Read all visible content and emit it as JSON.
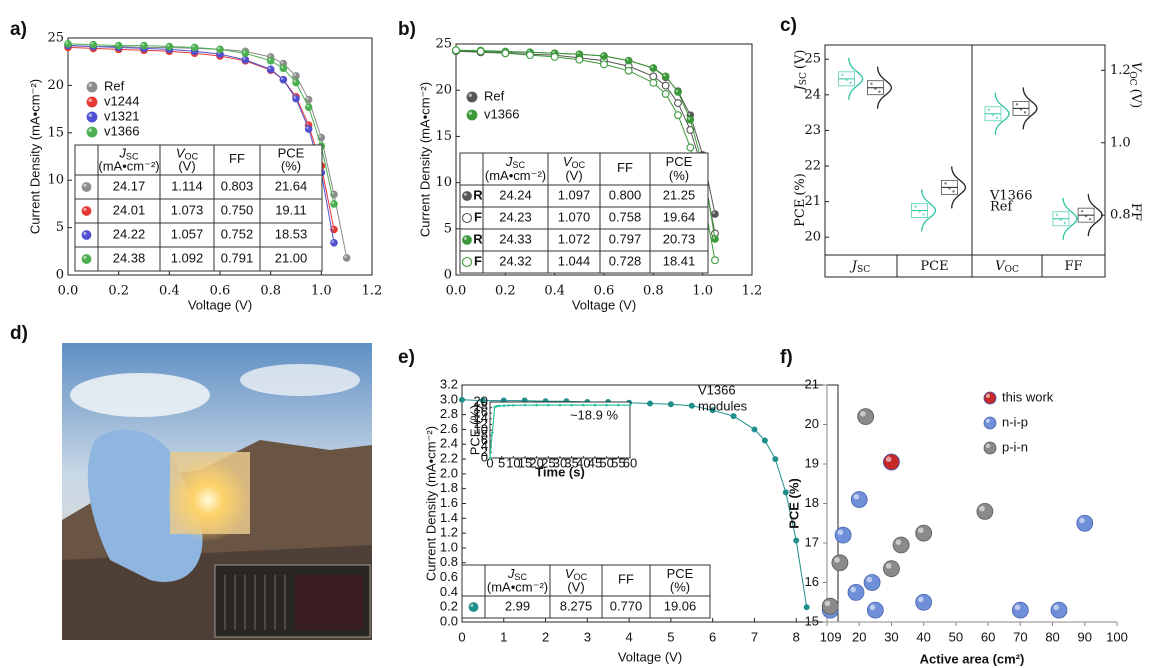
{
  "photo": {
    "label": "d)"
  },
  "chart_data": [
    {
      "type": "line",
      "label": "a)",
      "xlabel": "Voltage (V)",
      "ylabel": "Current Density (mA•cm⁻²)",
      "x": [
        0,
        0.1,
        0.2,
        0.3,
        0.4,
        0.5,
        0.6,
        0.7,
        0.8,
        0.85,
        0.9,
        0.95,
        1.0,
        1.05,
        1.1
      ],
      "series": [
        {
          "name": "Ref",
          "color": "#8c8c8c",
          "text_color": "#000000",
          "values": [
            24.17,
            24.1,
            24.1,
            24.0,
            24.0,
            23.9,
            23.8,
            23.6,
            23.0,
            22.3,
            21.0,
            18.5,
            14.5,
            8.5,
            1.8
          ]
        },
        {
          "name": "v1244",
          "color": "#e53935",
          "text_color": "#d32f2f",
          "values": [
            24.01,
            23.9,
            23.8,
            23.7,
            23.6,
            23.4,
            23.1,
            22.6,
            21.6,
            20.6,
            18.8,
            15.8,
            11.5,
            4.8,
            null
          ]
        },
        {
          "name": "v1321",
          "color": "#5050d0",
          "text_color": "#2e2ea8",
          "values": [
            24.22,
            24.1,
            24.0,
            23.9,
            23.8,
            23.6,
            23.3,
            22.7,
            21.7,
            20.6,
            18.6,
            15.4,
            10.8,
            3.4,
            null
          ]
        },
        {
          "name": "v1366",
          "color": "#4caf50",
          "text_color": "#5a9a2a",
          "values": [
            24.38,
            24.3,
            24.2,
            24.2,
            24.1,
            24.0,
            23.8,
            23.4,
            22.6,
            21.8,
            20.3,
            17.7,
            13.6,
            7.5,
            null
          ]
        }
      ],
      "xlim": [
        0,
        1.2
      ],
      "xticks": [
        {
          "value": 0,
          "label": "0.0"
        },
        0.2,
        0.4,
        0.6,
        0.8,
        {
          "value": 1,
          "label": "1.0"
        },
        1.2
      ],
      "ylim": [
        0,
        25
      ],
      "yticks": [
        0,
        5,
        10,
        15,
        20,
        25
      ],
      "table": {
        "columns": [
          {
            "name": "J",
            "sub": "SC",
            "unit": "(mA•cm⁻²)"
          },
          {
            "name": "V",
            "sub": "OC",
            "unit": "(V)"
          },
          {
            "name": "FF"
          },
          {
            "name": "PCE",
            "unit": "(%)"
          }
        ],
        "rows": [
          [
            "24.17",
            "1.114",
            "0.803",
            "21.64"
          ],
          [
            "24.01",
            "1.073",
            "0.750",
            "19.11"
          ],
          [
            "24.22",
            "1.057",
            "0.752",
            "18.53"
          ],
          [
            "24.38",
            "1.092",
            "0.791",
            "21.00"
          ]
        ]
      }
    },
    {
      "type": "line",
      "label": "b)",
      "xlabel": "Voltage (V)",
      "ylabel": "Current Density (mA•cm⁻²)",
      "x": [
        0,
        0.1,
        0.2,
        0.3,
        0.4,
        0.5,
        0.6,
        0.7,
        0.8,
        0.85,
        0.9,
        0.95,
        1.0,
        1.05,
        1.1
      ],
      "series": [
        {
          "name": "Ref",
          "scan": "R",
          "marker": "filled",
          "color": "#555555",
          "text_color": "#000000",
          "values": [
            24.24,
            24.2,
            24.1,
            24.1,
            24.0,
            23.9,
            23.7,
            23.2,
            22.4,
            21.4,
            19.9,
            17.3,
            13.0,
            6.6,
            null
          ]
        },
        {
          "name": "Ref",
          "scan": "F",
          "marker": "open",
          "color": "#555555",
          "text_color": "#000000",
          "values": [
            24.23,
            24.1,
            24.0,
            23.9,
            23.8,
            23.5,
            23.2,
            22.6,
            21.5,
            20.5,
            18.6,
            15.7,
            11.4,
            4.5,
            null
          ]
        },
        {
          "name": "v1366",
          "scan": "R",
          "marker": "filled",
          "color": "#3a9a3a",
          "text_color": "#5aa02c",
          "values": [
            24.33,
            24.3,
            24.2,
            24.1,
            24.0,
            23.9,
            23.7,
            23.2,
            22.4,
            21.5,
            19.8,
            16.8,
            11.9,
            3.9,
            null
          ]
        },
        {
          "name": "v1366",
          "scan": "F",
          "marker": "open",
          "color": "#3a9a3a",
          "text_color": "#5aa02c",
          "values": [
            24.32,
            24.2,
            24.0,
            23.8,
            23.6,
            23.3,
            22.8,
            22.1,
            20.8,
            19.6,
            17.3,
            13.8,
            8.8,
            1.6,
            null
          ]
        }
      ],
      "xlim": [
        0,
        1.2
      ],
      "xticks": [
        {
          "value": 0,
          "label": "0.0"
        },
        0.2,
        0.4,
        0.6,
        0.8,
        {
          "value": 1,
          "label": "1.0"
        },
        1.2
      ],
      "ylim": [
        0,
        25
      ],
      "yticks": [
        0,
        5,
        10,
        15,
        20,
        25
      ],
      "table": {
        "columns": [
          {
            "name": "J",
            "sub": "SC",
            "unit": "(mA•cm⁻²)"
          },
          {
            "name": "V",
            "sub": "OC",
            "unit": "(V)"
          },
          {
            "name": "FF"
          },
          {
            "name": "PCE",
            "unit": "(%)"
          }
        ],
        "rows": [
          [
            "24.24",
            "1.097",
            "0.800",
            "21.25"
          ],
          [
            "24.23",
            "1.070",
            "0.758",
            "19.64"
          ],
          [
            "24.33",
            "1.072",
            "0.797",
            "20.73"
          ],
          [
            "24.32",
            "1.044",
            "0.728",
            "18.41"
          ]
        ]
      }
    },
    {
      "type": "box",
      "label": "c)",
      "categories": [
        {
          "name": "J",
          "sub": "SC"
        },
        {
          "name": "PCE"
        },
        {
          "name": "V",
          "sub": "OC"
        },
        {
          "name": "FF"
        }
      ],
      "axes": [
        "y",
        "y",
        "y2",
        "y2"
      ],
      "series": [
        {
          "name": "V1366",
          "color": "#2ec4a0",
          "values": [
            24.45,
            20.75,
            1.08,
            0.79
          ]
        },
        {
          "name": "Ref",
          "color": "#222222",
          "values": [
            24.2,
            21.4,
            1.095,
            0.8
          ]
        }
      ],
      "ylim": [
        19.5,
        25.4
      ],
      "yticks": [
        20,
        21,
        22,
        23,
        24,
        25
      ],
      "y2lim": [
        0.69,
        1.27
      ],
      "y2ticks": [
        0.8,
        {
          "value": 1,
          "label": "1.0"
        },
        1.2
      ],
      "ylabel": {
        "name": "J",
        "sub": "SC",
        "unit": "(V)"
      },
      "ylabel2": {
        "name": "PCE",
        "unit": "(%)"
      },
      "y2label": {
        "name": "V",
        "sub": "OC",
        "unit": "(V)"
      },
      "y2label2": {
        "name": "FF"
      }
    },
    {
      "type": "line",
      "label": "e)",
      "xlabel": "Voltage (V)",
      "ylabel": "Current Density (mA•cm⁻²)",
      "x": [
        0,
        0.5,
        1,
        1.5,
        2,
        2.5,
        3,
        3.5,
        4,
        4.5,
        5,
        5.5,
        6,
        6.5,
        7,
        7.25,
        7.5,
        7.75,
        8,
        8.25
      ],
      "series": [
        {
          "name": "V1366",
          "color": "#1f8f8a",
          "text_color": "#3a8a2a",
          "values": [
            3.0,
            2.99,
            2.99,
            2.99,
            2.98,
            2.98,
            2.97,
            2.97,
            2.96,
            2.95,
            2.94,
            2.92,
            2.86,
            2.78,
            2.6,
            2.45,
            2.2,
            1.75,
            1.1,
            0.2
          ]
        }
      ],
      "xlim": [
        0,
        9
      ],
      "xticks": [
        0,
        1,
        2,
        3,
        4,
        5,
        6,
        7,
        8,
        9
      ],
      "ylim": [
        0,
        3.2
      ],
      "yticks": [
        {
          "value": 0,
          "label": "0.0"
        },
        0.2,
        0.4,
        0.6,
        0.8,
        {
          "value": 1,
          "label": "1.0"
        },
        1.2,
        1.4,
        1.6,
        1.8,
        {
          "value": 2,
          "label": "2.0"
        },
        2.2,
        2.4,
        2.6,
        2.8,
        {
          "value": 3,
          "label": "3.0"
        },
        3.2
      ],
      "annotation": [
        "V1366",
        "modules"
      ],
      "table": {
        "columns": [
          {
            "name": "J",
            "sub": "SC",
            "unit": "(mA•cm⁻²)"
          },
          {
            "name": "V",
            "sub": "OC",
            "unit": "(V)"
          },
          {
            "name": "FF"
          },
          {
            "name": "PCE",
            "unit": "(%)"
          }
        ],
        "rows": [
          [
            "2.99",
            "8.275",
            "0.770",
            "19.06"
          ]
        ]
      },
      "inset": {
        "xlabel": "Time (s)",
        "ylabel": "PCE (%)",
        "color": "#2ec4a0",
        "annotation": "~18.9 %",
        "x": [
          0,
          1,
          2,
          3,
          4,
          6,
          8,
          10,
          15,
          20,
          25,
          30,
          35,
          40,
          45,
          50,
          55,
          60
        ],
        "values": [
          0,
          9,
          18.2,
          18.5,
          18.6,
          18.7,
          18.8,
          18.8,
          18.9,
          18.9,
          18.9,
          18.9,
          18.9,
          18.9,
          18.9,
          18.9,
          18.9,
          18.9
        ],
        "xlim": [
          0,
          60
        ],
        "xticks": [
          0,
          5,
          10,
          15,
          20,
          25,
          30,
          35,
          40,
          45,
          50,
          55,
          60
        ],
        "ylim": [
          0,
          20
        ],
        "yticks": [
          0,
          2,
          4,
          6,
          8,
          10,
          12,
          14,
          16,
          18,
          20
        ]
      }
    },
    {
      "type": "scatter",
      "label": "f)",
      "xlabel": "Active area (cm²)",
      "ylabel": "PCE (%)",
      "series": [
        {
          "name": "this work",
          "color": "#c62828",
          "stroke": "#3b4fb0",
          "x": [
            30
          ],
          "values": [
            19.05
          ]
        },
        {
          "name": "n-i-p",
          "color": "#6f8fd8",
          "stroke": "#4a66b0",
          "x": [
            11,
            15,
            19,
            20,
            24,
            25,
            40,
            70,
            82,
            90
          ],
          "values": [
            15.3,
            17.2,
            15.75,
            18.1,
            16.0,
            15.3,
            15.5,
            15.3,
            15.3,
            17.5
          ]
        },
        {
          "name": "p-i-n",
          "color": "#8a8a8a",
          "stroke": "#5a5a5a",
          "x": [
            11,
            14,
            22,
            30,
            33,
            40,
            59
          ],
          "values": [
            15.4,
            16.5,
            20.2,
            16.35,
            16.95,
            17.25,
            17.8
          ]
        }
      ],
      "xlim": [
        10,
        100
      ],
      "xticks": [
        10,
        20,
        30,
        40,
        50,
        60,
        70,
        80,
        90,
        100
      ],
      "ylim": [
        15,
        21
      ],
      "yticks": [
        15,
        16,
        17,
        18,
        19,
        20,
        21
      ]
    }
  ]
}
